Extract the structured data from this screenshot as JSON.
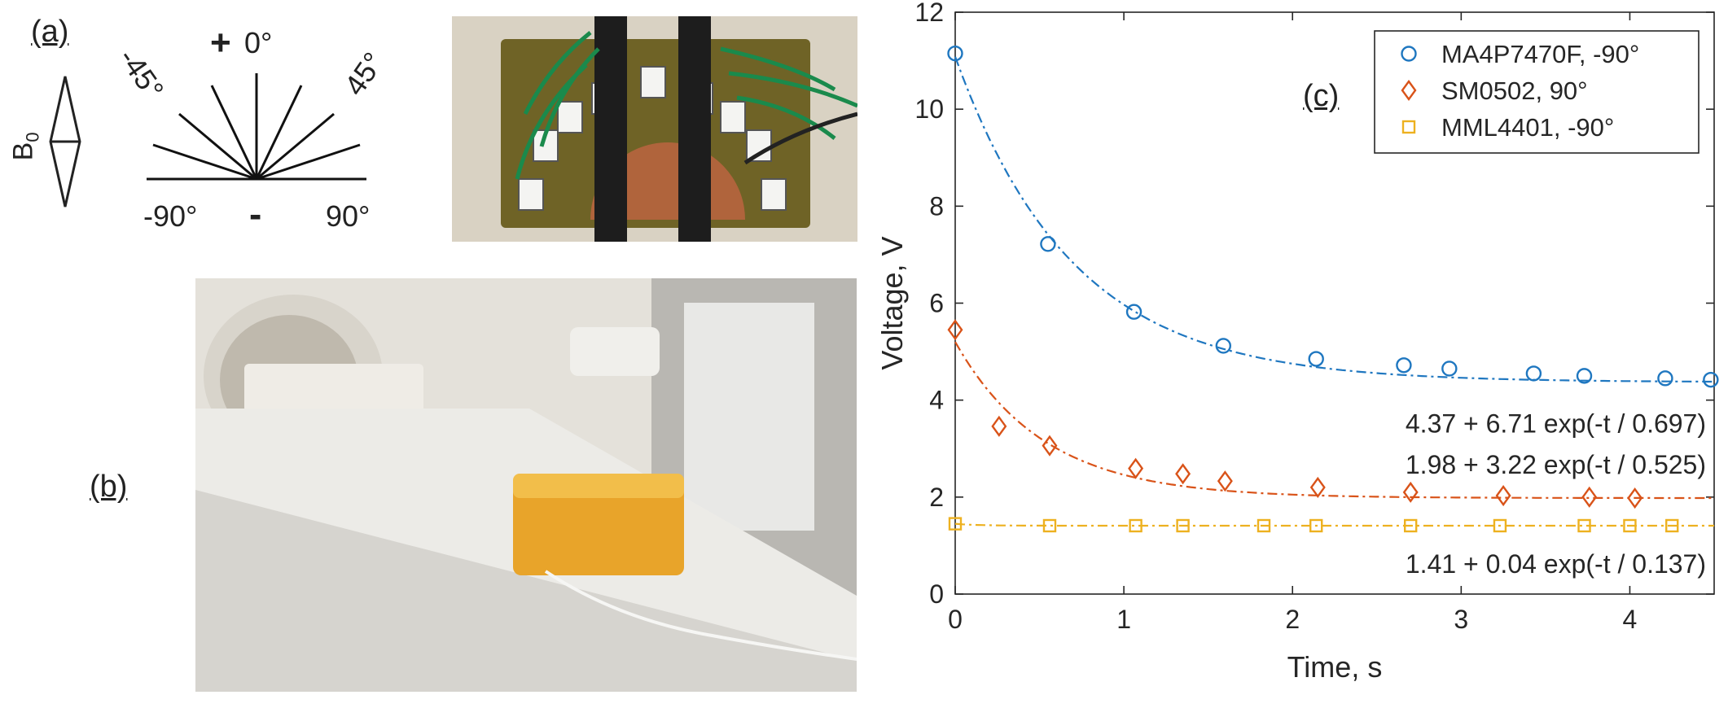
{
  "panel_a": {
    "label": "(a)",
    "field_label": "B",
    "field_sub": "0",
    "angles": {
      "top": "0°",
      "left45": "-45°",
      "right45": "45°",
      "left90": "-90°",
      "right90": "90°"
    },
    "plus": "+",
    "minus": "-"
  },
  "panel_b": {
    "label": "(b)"
  },
  "panel_c": {
    "label": "(c)"
  },
  "colors": {
    "series1": "#1f77c0",
    "series2": "#d95319",
    "series3": "#edb120"
  },
  "chart_data": {
    "type": "scatter",
    "xlabel": "Time, s",
    "ylabel": "Voltage, V",
    "xlim": [
      0,
      4.5
    ],
    "ylim": [
      0,
      12
    ],
    "xticks": [
      0,
      1,
      2,
      3,
      4
    ],
    "yticks": [
      0,
      2,
      4,
      6,
      8,
      10,
      12
    ],
    "legend_position": "top-right",
    "series": [
      {
        "name": "MA4P7470F, -90°",
        "marker": "circle",
        "color": "#1f77c0",
        "x": [
          0,
          0.55,
          1.06,
          1.59,
          2.14,
          2.66,
          2.93,
          3.43,
          3.73,
          4.21,
          4.48
        ],
        "y": [
          11.15,
          7.22,
          5.82,
          5.12,
          4.85,
          4.72,
          4.65,
          4.55,
          4.5,
          4.45,
          4.42
        ],
        "fit": {
          "a": 4.37,
          "b": 6.71,
          "tau": 0.697
        },
        "fit_label": "4.37 + 6.71 exp(-t / 0.697)"
      },
      {
        "name": "SM0502, 90°",
        "marker": "diamond",
        "color": "#d95319",
        "x": [
          0,
          0.26,
          0.56,
          1.07,
          1.35,
          1.6,
          2.15,
          2.7,
          3.25,
          3.76,
          4.03
        ],
        "y": [
          5.45,
          3.46,
          3.06,
          2.59,
          2.48,
          2.33,
          2.2,
          2.1,
          2.03,
          2.0,
          1.98
        ],
        "fit": {
          "a": 1.98,
          "b": 3.22,
          "tau": 0.525
        },
        "fit_label": "1.98 + 3.22 exp(-t / 0.525)"
      },
      {
        "name": "MML4401, -90°",
        "marker": "square",
        "color": "#edb120",
        "x": [
          0,
          0.56,
          1.07,
          1.35,
          1.83,
          2.14,
          2.7,
          3.23,
          3.73,
          4.0,
          4.25
        ],
        "y": [
          1.45,
          1.41,
          1.41,
          1.41,
          1.41,
          1.41,
          1.41,
          1.41,
          1.41,
          1.41,
          1.41
        ],
        "fit": {
          "a": 1.41,
          "b": 0.04,
          "tau": 0.137
        },
        "fit_label": "1.41 + 0.04 exp(-t / 0.137)"
      }
    ]
  }
}
